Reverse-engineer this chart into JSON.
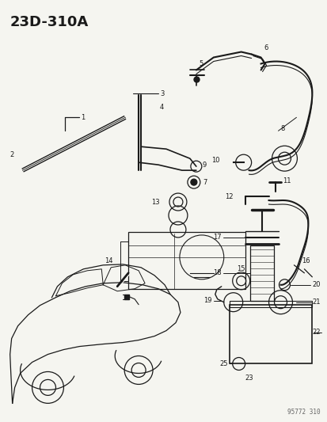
{
  "title": "23D-310A",
  "watermark": "95772 310",
  "bg_color": "#f5f5f0",
  "line_color": "#1a1a1a",
  "fig_w": 4.14,
  "fig_h": 5.33,
  "dpi": 100
}
